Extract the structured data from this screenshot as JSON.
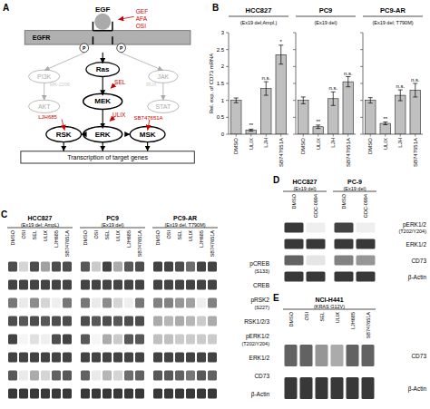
{
  "chart_data": [
    {
      "type": "diagram",
      "panel": "A",
      "annotations": [
        {
          "text": "EGF"
        },
        {
          "text": "GEF",
          "color": "#cc0000"
        },
        {
          "text": "AFA",
          "color": "#cc0000"
        },
        {
          "text": "OSI",
          "color": "#cc0000"
        },
        {
          "text": "EGFR"
        },
        {
          "text": "P"
        },
        {
          "text": "P"
        },
        {
          "text": "PI3K",
          "color": "#aaaaaa"
        },
        {
          "text": "Ras"
        },
        {
          "text": "JAK",
          "color": "#aaaaaa"
        },
        {
          "text": "SEL",
          "color": "#cc0000"
        },
        {
          "text": "MK-2206",
          "color": "#cccccc"
        },
        {
          "text": "RUX",
          "color": "#cccccc"
        },
        {
          "text": "AKT",
          "color": "#aaaaaa"
        },
        {
          "text": "MEK"
        },
        {
          "text": "STAT",
          "color": "#aaaaaa"
        },
        {
          "text": "ULIX",
          "color": "#cc0000"
        },
        {
          "text": "LJH685",
          "color": "#cc0000"
        },
        {
          "text": "SB747651A",
          "color": "#cc0000"
        },
        {
          "text": "ERK"
        },
        {
          "text": "RSK"
        },
        {
          "text": "MSK"
        },
        {
          "text": "Transcription of target genes"
        }
      ]
    },
    {
      "type": "bar",
      "panel": "B",
      "title": "HCC827",
      "subtitle": "(Ex19 del;Ampl.)",
      "categories": [
        "DMSO",
        "ULIX",
        "LJH",
        "SB747651A"
      ],
      "values": [
        1.0,
        0.12,
        1.35,
        2.35
      ],
      "errors": [
        0.07,
        0.03,
        0.2,
        0.28
      ],
      "significance": [
        null,
        "**",
        "n.s.",
        "*"
      ],
      "y_label": "Rel. exp. of CD73 mRNA",
      "ylim": [
        0,
        3
      ],
      "yticks": [
        0,
        0.5,
        1,
        1.5,
        2,
        2.5,
        3
      ],
      "color": "#c0c0c0"
    },
    {
      "type": "bar",
      "title": "PC9",
      "subtitle": "(Ex19 del)",
      "categories": [
        "DMSO",
        "ULIX",
        "LJH",
        "SB747651A"
      ],
      "values": [
        1.0,
        0.22,
        1.05,
        1.55
      ],
      "errors": [
        0.1,
        0.05,
        0.2,
        0.15
      ],
      "significance": [
        null,
        "**",
        "n.s.",
        "n.s."
      ],
      "ylim": [
        0,
        3
      ],
      "yticks": [
        0,
        0.5,
        1,
        1.5,
        2,
        2.5,
        3
      ],
      "tick_labels": "x",
      "color": "#c0c0c0"
    },
    {
      "type": "bar",
      "title": "PC9-AR",
      "subtitle": "(Ex19 del; T790M)",
      "categories": [
        "DMSO",
        "ULIX",
        "LJH",
        "SB747651A"
      ],
      "values": [
        1.0,
        0.32,
        1.15,
        1.3
      ],
      "errors": [
        0.08,
        0.04,
        0.16,
        0.2
      ],
      "significance": [
        null,
        "**",
        "n.s.",
        "n.s."
      ],
      "ylim": [
        0,
        3
      ],
      "yticks": [
        0,
        0.5,
        1,
        1.5,
        2,
        2.5,
        3
      ],
      "tick_labels": "x",
      "color": "#c0c0c0"
    },
    {
      "type": "blot",
      "panel": "C",
      "color_range": [
        0,
        2
      ],
      "groups": [
        {
          "name": "HCC827",
          "subtitle": "(Ex19 del; AmpL)"
        },
        {
          "name": "PC9",
          "subtitle": "(Ex19 del)"
        },
        {
          "name": "PC9-AR",
          "subtitle": "(Ex19 del, T790M)"
        }
      ],
      "lanes": [
        "DMSO",
        "OSI",
        "SEL",
        "ULIX",
        "LJH685",
        "SB747651A"
      ],
      "rows": [
        {
          "name": "pCREB",
          "subtitle": "(S133)",
          "cells": [
            [
              1.7,
              0.4,
              1.7,
              0.9,
              1.7,
              1.7
            ],
            [
              1.6,
              0.5,
              1.8,
              0.8,
              1.6,
              1.7
            ],
            [
              1.8,
              1.8,
              1.7,
              1.4,
              1.8,
              1.8
            ]
          ]
        },
        {
          "name": "CREB",
          "cells": [
            [
              1.8,
              1.8,
              1.8,
              1.8,
              1.8,
              1.8
            ],
            [
              1.8,
              1.8,
              1.8,
              1.8,
              1.8,
              1.8
            ],
            [
              1.8,
              1.8,
              1.8,
              1.8,
              1.8,
              1.8
            ]
          ]
        },
        {
          "name": "pRSK2",
          "subtitle": "(S227)",
          "cells": [
            [
              1.3,
              0.2,
              1.1,
              0.4,
              0.15,
              1.3
            ],
            [
              1.3,
              0.2,
              1.1,
              0.4,
              0.15,
              1.3
            ],
            [
              1.2,
              1.2,
              1.0,
              0.9,
              0.15,
              1.2
            ]
          ]
        },
        {
          "name": "RSK1/2/3",
          "cells": [
            [
              1.7,
              1.6,
              1.7,
              1.6,
              1.7,
              1.7
            ],
            [
              1.7,
              1.6,
              1.7,
              1.6,
              1.7,
              1.7
            ],
            [
              0.8,
              0.7,
              0.8,
              0.7,
              0.5,
              0.8
            ]
          ]
        },
        {
          "name": "pERK1/2",
          "subtitle": "(T202/Y204)",
          "cells": [
            [
              1.8,
              0.1,
              0.3,
              0.15,
              1.7,
              1.8
            ],
            [
              1.6,
              0.1,
              0.8,
              0.5,
              1.6,
              1.6
            ],
            [
              0.6,
              0.6,
              0.5,
              0.5,
              0.5,
              0.5
            ]
          ]
        },
        {
          "name": "ERK1/2",
          "cells": [
            [
              1.8,
              1.8,
              1.8,
              1.8,
              1.8,
              1.8
            ],
            [
              1.8,
              1.8,
              1.8,
              1.8,
              1.8,
              1.8
            ],
            [
              1.8,
              1.8,
              1.8,
              1.8,
              1.8,
              1.8
            ]
          ]
        },
        {
          "name": "CD73",
          "cells": [
            [
              1.6,
              0.2,
              0.8,
              0.4,
              1.5,
              1.6
            ],
            [
              1.5,
              0.2,
              0.7,
              0.4,
              1.4,
              1.5
            ],
            [
              1.6,
              1.6,
              1.5,
              1.3,
              1.6,
              1.5
            ]
          ]
        },
        {
          "name": "β-Actin",
          "cells": [
            [
              1.9,
              1.9,
              1.9,
              1.9,
              1.9,
              1.9
            ],
            [
              1.9,
              1.9,
              1.9,
              1.9,
              1.9,
              1.9
            ],
            [
              1.9,
              1.9,
              1.9,
              1.9,
              1.9,
              1.9
            ]
          ]
        }
      ]
    },
    {
      "type": "blot",
      "panel": "D",
      "color_range": [
        0,
        2
      ],
      "groups": [
        {
          "name": "HCC827",
          "subtitle": "(Ex19 del)"
        },
        {
          "name": "PC-9",
          "subtitle": "(Ex19 del)"
        }
      ],
      "lanes": [
        "DMSO",
        "GDC-0994"
      ],
      "rows": [
        {
          "name": "pERK1/2",
          "subtitle": "(T202/Y204)",
          "cells": [
            [
              1.9,
              0.15
            ],
            [
              1.8,
              0.15
            ]
          ]
        },
        {
          "name": "ERK1/2",
          "cells": [
            [
              1.9,
              1.9
            ],
            [
              1.9,
              1.9
            ]
          ]
        },
        {
          "name": "CD73",
          "cells": [
            [
              1.5,
              0.25
            ],
            [
              1.2,
              1.0
            ]
          ]
        },
        {
          "name": "β-Actin",
          "cells": [
            [
              1.9,
              1.9
            ],
            [
              1.9,
              1.9
            ]
          ]
        }
      ]
    },
    {
      "type": "blot",
      "panel": "E",
      "color_range": [
        0,
        2
      ],
      "groups": [
        {
          "name": "NCI-H441",
          "subtitle": "(KRAS G12V)"
        }
      ],
      "lanes": [
        "DMSO",
        "OSI",
        "SEL",
        "ULIX",
        "LJH685",
        "SB747651A"
      ],
      "rows": [
        {
          "name": "CD73",
          "cells": [
            [
              1.5,
              1.5,
              1.0,
              0.8,
              1.5,
              1.5
            ]
          ]
        },
        {
          "name": "β-Actin",
          "cells": [
            [
              1.9,
              1.9,
              1.9,
              1.9,
              1.9,
              1.9
            ]
          ]
        }
      ]
    }
  ]
}
